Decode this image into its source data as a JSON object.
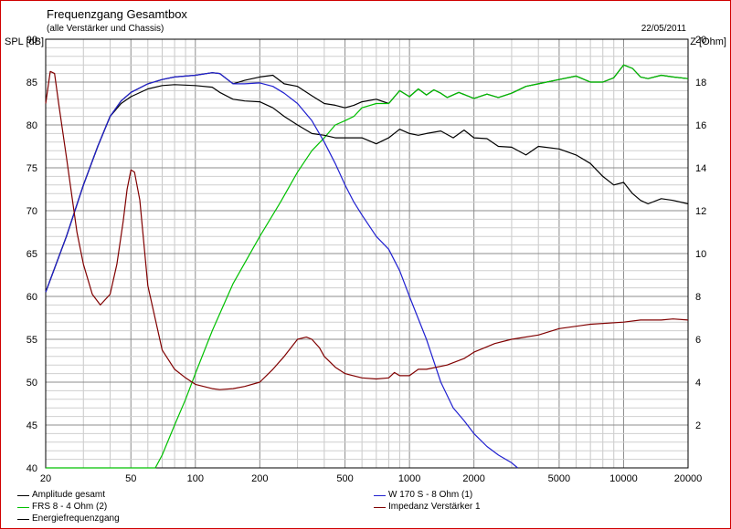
{
  "chart_data": {
    "type": "line",
    "title": "Frequenzgang Gesamtbox",
    "subtitle": "(alle Verstärker und Chassis)",
    "date": "22/05/2011",
    "ylabel_left": "SPL [dB]",
    "ylabel_right": "Z [Ohm]",
    "x_scale": "log",
    "xlim": [
      20,
      20000
    ],
    "ylim_left": [
      40,
      90
    ],
    "ylim_right": [
      0,
      20
    ],
    "grid": true,
    "legend_position": "bottom",
    "x_ticks": [
      {
        "value": 20,
        "label": "20"
      },
      {
        "value": 50,
        "label": "50"
      },
      {
        "value": 100,
        "label": "100"
      },
      {
        "value": 200,
        "label": "200"
      },
      {
        "value": 500,
        "label": "500"
      },
      {
        "value": 1000,
        "label": "1000"
      },
      {
        "value": 2000,
        "label": "2000"
      },
      {
        "value": 5000,
        "label": "5000"
      },
      {
        "value": 10000,
        "label": "10000"
      },
      {
        "value": 20000,
        "label": "20000"
      }
    ],
    "y_ticks_left": [
      {
        "value": 40,
        "label": "40"
      },
      {
        "value": 45,
        "label": "45"
      },
      {
        "value": 50,
        "label": "50"
      },
      {
        "value": 55,
        "label": "55"
      },
      {
        "value": 60,
        "label": "60"
      },
      {
        "value": 65,
        "label": "65"
      },
      {
        "value": 70,
        "label": "70"
      },
      {
        "value": 75,
        "label": "75"
      },
      {
        "value": 80,
        "label": "80"
      },
      {
        "value": 85,
        "label": "85"
      },
      {
        "value": 90,
        "label": "90"
      }
    ],
    "y_ticks_right": [
      {
        "value": 2,
        "label": "2"
      },
      {
        "value": 4,
        "label": "4"
      },
      {
        "value": 6,
        "label": "6"
      },
      {
        "value": 8,
        "label": "8"
      },
      {
        "value": 10,
        "label": "10"
      },
      {
        "value": 12,
        "label": "12"
      },
      {
        "value": 14,
        "label": "14"
      },
      {
        "value": 16,
        "label": "16"
      },
      {
        "value": 18,
        "label": "18"
      },
      {
        "value": 20,
        "label": "20"
      }
    ],
    "series": [
      {
        "name": "Amplitude gesamt",
        "color": "#000000",
        "axis": "left",
        "x": [
          20,
          25,
          30,
          35,
          40,
          45,
          50,
          60,
          70,
          80,
          100,
          120,
          130,
          150,
          170,
          200,
          230,
          260,
          300,
          350,
          400,
          450,
          500,
          550,
          600,
          700,
          800,
          900,
          1000,
          1100,
          1200,
          1300,
          1400,
          1500,
          1700,
          2000,
          2300,
          2600,
          3000,
          3500,
          4000,
          5000,
          6000,
          7000,
          8000,
          9000,
          10000,
          11000,
          12000,
          13000,
          15000,
          17000,
          20000
        ],
        "y": [
          60.5,
          67,
          73,
          77.5,
          81,
          82.8,
          83.8,
          84.8,
          85.3,
          85.6,
          85.8,
          86.1,
          86,
          84.8,
          85.2,
          85.6,
          85.8,
          84.8,
          84.5,
          83.4,
          82.5,
          82.3,
          82,
          82.3,
          82.7,
          83,
          82.5,
          84,
          83.3,
          84.2,
          83.5,
          84.1,
          83.7,
          83.2,
          83.8,
          83.1,
          83.6,
          83.2,
          83.7,
          84.5,
          84.8,
          85.3,
          85.7,
          85,
          85,
          85.5,
          87,
          86.6,
          85.6,
          85.4,
          85.8,
          85.6,
          85.4
        ]
      },
      {
        "name": "FRS 8 - 4 Ohm (2)",
        "color": "#00c000",
        "axis": "left",
        "x": [
          20,
          30,
          50,
          65,
          70,
          80,
          90,
          100,
          120,
          150,
          200,
          250,
          300,
          350,
          400,
          450,
          500,
          550,
          600,
          700,
          800,
          900,
          1000,
          1100,
          1200,
          1300,
          1400,
          1500,
          1700,
          2000,
          2300,
          2600,
          3000,
          3500,
          4000,
          5000,
          6000,
          7000,
          8000,
          9000,
          10000,
          11000,
          12000,
          13000,
          15000,
          17000,
          20000
        ],
        "y": [
          40,
          40,
          40,
          40,
          41.5,
          45,
          48,
          51,
          56,
          61.5,
          67,
          71,
          74.5,
          77,
          78.5,
          80,
          80.5,
          81,
          82,
          82.5,
          82.5,
          84,
          83.3,
          84.2,
          83.5,
          84.1,
          83.7,
          83.2,
          83.8,
          83.1,
          83.6,
          83.2,
          83.7,
          84.5,
          84.8,
          85.3,
          85.7,
          85,
          85,
          85.5,
          87,
          86.6,
          85.6,
          85.4,
          85.8,
          85.6,
          85.4
        ]
      },
      {
        "name": "Energiefrequenzgang",
        "color": "#000000",
        "axis": "left",
        "x": [
          20,
          25,
          30,
          35,
          40,
          45,
          50,
          60,
          70,
          80,
          100,
          120,
          130,
          150,
          170,
          200,
          230,
          260,
          300,
          350,
          400,
          450,
          500,
          600,
          700,
          800,
          900,
          1000,
          1100,
          1200,
          1400,
          1600,
          1800,
          2000,
          2300,
          2600,
          3000,
          3500,
          4000,
          5000,
          6000,
          7000,
          8000,
          9000,
          10000,
          11000,
          12000,
          13000,
          15000,
          17000,
          20000
        ],
        "y": [
          60.5,
          67,
          73,
          77.5,
          81,
          82.5,
          83.3,
          84.2,
          84.6,
          84.7,
          84.6,
          84.4,
          83.8,
          83,
          82.8,
          82.7,
          82,
          81,
          80,
          79,
          78.8,
          78.5,
          78.5,
          78.5,
          77.8,
          78.5,
          79.5,
          79,
          78.8,
          79,
          79.3,
          78.5,
          79.4,
          78.5,
          78.4,
          77.5,
          77.4,
          76.5,
          77.5,
          77.2,
          76.5,
          75.5,
          74,
          73,
          73.3,
          72,
          71.2,
          70.8,
          71.4,
          71.2,
          70.8
        ]
      },
      {
        "name": "W 170 S - 8 Ohm (1)",
        "color": "#2020d0",
        "axis": "left",
        "x": [
          20,
          25,
          30,
          35,
          40,
          45,
          50,
          60,
          70,
          80,
          100,
          120,
          130,
          150,
          170,
          200,
          230,
          260,
          300,
          350,
          400,
          450,
          500,
          550,
          600,
          700,
          800,
          900,
          1000,
          1200,
          1400,
          1600,
          1800,
          2000,
          2300,
          2600,
          3000,
          3200
        ],
        "y": [
          60.5,
          67,
          73,
          77.5,
          81,
          82.8,
          83.8,
          84.8,
          85.3,
          85.6,
          85.8,
          86.1,
          86,
          84.8,
          84.8,
          84.9,
          84.5,
          83.7,
          82.5,
          80.5,
          78,
          75.5,
          73,
          71,
          69.5,
          67,
          65.5,
          63,
          60,
          55,
          50,
          47,
          45.5,
          44,
          42.5,
          41.5,
          40.6,
          40
        ]
      },
      {
        "name": "Impedanz Verstärker 1",
        "color": "#800000",
        "axis": "right",
        "x": [
          20,
          21,
          22,
          23,
          25,
          28,
          30,
          33,
          36,
          40,
          43,
          46,
          48,
          50,
          52,
          55,
          60,
          70,
          80,
          90,
          100,
          120,
          130,
          150,
          170,
          200,
          230,
          260,
          300,
          330,
          350,
          380,
          400,
          450,
          500,
          600,
          700,
          800,
          850,
          900,
          1000,
          1100,
          1200,
          1500,
          1800,
          2000,
          2500,
          3000,
          4000,
          5000,
          7000,
          10000,
          12000,
          15000,
          17000,
          20000
        ],
        "y": [
          17,
          18.5,
          18.4,
          17,
          14.5,
          11,
          9.5,
          8.1,
          7.6,
          8.1,
          9.5,
          11.5,
          13,
          13.9,
          13.8,
          12.5,
          8.5,
          5.5,
          4.6,
          4.2,
          3.9,
          3.7,
          3.65,
          3.7,
          3.8,
          4,
          4.6,
          5.2,
          6,
          6.1,
          6,
          5.6,
          5.2,
          4.7,
          4.4,
          4.2,
          4.15,
          4.2,
          4.45,
          4.3,
          4.3,
          4.6,
          4.6,
          4.8,
          5.1,
          5.4,
          5.8,
          6,
          6.2,
          6.5,
          6.7,
          6.8,
          6.9,
          6.9,
          6.95,
          6.9
        ]
      }
    ],
    "legend": [
      {
        "label": "Amplitude gesamt",
        "color": "#000000"
      },
      {
        "label": "W 170 S - 8 Ohm (1)",
        "color": "#2020d0"
      },
      {
        "label": "FRS 8 - 4 Ohm (2)",
        "color": "#00c000"
      },
      {
        "label": "Impedanz Verstärker 1",
        "color": "#800000"
      },
      {
        "label": "Energiefrequenzgang",
        "color": "#000000"
      }
    ]
  }
}
